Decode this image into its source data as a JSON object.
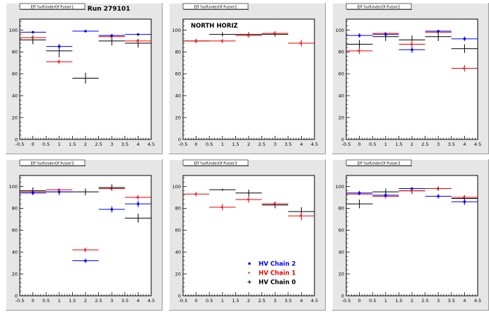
{
  "figure": {
    "run_label": "Run 279101",
    "colors": {
      "pad_background": "#e6e6e6",
      "frame_background": "#ffffff",
      "chain2": "#0000ff",
      "chain1": "#ee0000",
      "chain0": "#000000"
    }
  },
  "chart_data": [
    {
      "type": "scatter",
      "title": "Eff %ofUnderOf Pulser1",
      "xlim": [
        -0.5,
        4.5
      ],
      "ylim": [
        0,
        110
      ],
      "x_ticks": [
        "-0.5",
        "0",
        "0.5",
        "1",
        "1.5",
        "2",
        "2.5",
        "3",
        "3.5",
        "4",
        "4.5"
      ],
      "y_ticks": [
        "0",
        "20",
        "40",
        "60",
        "80",
        "100"
      ],
      "series": [
        {
          "key": "chain2",
          "x": [
            0,
            1,
            2,
            3,
            4
          ],
          "y": [
            98,
            85,
            99,
            95,
            96
          ],
          "err": [
            0,
            2,
            0,
            1,
            0
          ]
        },
        {
          "key": "chain1",
          "x": [
            0,
            1,
            2,
            3,
            4
          ],
          "y": [
            93,
            71,
            null,
            94,
            90
          ],
          "err": [
            1,
            2,
            0,
            1,
            2
          ]
        },
        {
          "key": "chain0",
          "x": [
            0,
            1,
            2,
            3,
            4
          ],
          "y": [
            91,
            81,
            56,
            90,
            88
          ],
          "err": [
            4,
            6,
            5,
            4,
            4
          ]
        }
      ]
    },
    {
      "type": "scatter",
      "title": "Eff %ofUnderOf Pulser2",
      "annotation": "NORTH HORIZ",
      "xlim": [
        -0.5,
        4.5
      ],
      "ylim": [
        0,
        110
      ],
      "x_ticks": [
        "-0.5",
        "0",
        "0.5",
        "1",
        "1.5",
        "2",
        "2.5",
        "3",
        "3.5",
        "4",
        "4.5"
      ],
      "y_ticks": [
        "0",
        "20",
        "40",
        "60",
        "80",
        "100"
      ],
      "series": [
        {
          "key": "chain2",
          "x": [],
          "y": [],
          "err": []
        },
        {
          "key": "chain1",
          "x": [
            0,
            1,
            2,
            3,
            4
          ],
          "y": [
            90,
            90,
            95,
            97,
            88
          ],
          "err": [
            2,
            2,
            2,
            2,
            3
          ]
        },
        {
          "key": "chain0",
          "x": [
            0,
            1,
            2,
            3
          ],
          "y": [
            90,
            96,
            96,
            96
          ],
          "err": [
            2,
            2,
            2,
            2
          ]
        }
      ]
    },
    {
      "type": "scatter",
      "title": "Eff %ofUnderOf Pulser2",
      "xlim": [
        -0.5,
        4.5
      ],
      "ylim": [
        0,
        110
      ],
      "x_ticks": [
        "-0.5",
        "0",
        "0.5",
        "1",
        "1.5",
        "2",
        "2.5",
        "3",
        "3.5",
        "4",
        "4.5"
      ],
      "y_ticks": [
        "0",
        "20",
        "40",
        "60",
        "80",
        "100"
      ],
      "series": [
        {
          "key": "chain2",
          "x": [
            0,
            1,
            2,
            3,
            4
          ],
          "y": [
            95,
            96,
            82,
            99,
            92
          ],
          "err": [
            2,
            1,
            3,
            1,
            2
          ]
        },
        {
          "key": "chain1",
          "x": [
            0,
            1,
            2,
            3,
            4
          ],
          "y": [
            81,
            97,
            87,
            98,
            65
          ],
          "err": [
            3,
            1,
            3,
            1,
            3
          ]
        },
        {
          "key": "chain0",
          "x": [
            0,
            1,
            2,
            3,
            4
          ],
          "y": [
            87,
            94,
            91,
            94,
            83
          ],
          "err": [
            4,
            4,
            4,
            4,
            4
          ]
        }
      ]
    },
    {
      "type": "scatter",
      "title": "Eff %ofUnderOf Pulser3",
      "xlim": [
        -0.5,
        4.5
      ],
      "ylim": [
        0,
        110
      ],
      "x_ticks": [
        "-0.5",
        "0",
        "0.5",
        "1",
        "1.5",
        "2",
        "2.5",
        "3",
        "3.5",
        "4",
        "4.5"
      ],
      "y_ticks": [
        "0",
        "20",
        "40",
        "60",
        "80",
        "100"
      ],
      "series": [
        {
          "key": "chain2",
          "x": [
            0,
            1,
            2,
            3,
            4
          ],
          "y": [
            94,
            95,
            32,
            79,
            84
          ],
          "err": [
            2,
            1,
            2,
            3,
            3
          ]
        },
        {
          "key": "chain1",
          "x": [
            0,
            1,
            2,
            3,
            4
          ],
          "y": [
            95,
            97,
            42,
            98,
            90
          ],
          "err": [
            1,
            1,
            2,
            1,
            2
          ]
        },
        {
          "key": "chain0",
          "x": [
            0,
            1,
            2,
            3,
            4
          ],
          "y": [
            96,
            95,
            95,
            99,
            71
          ],
          "err": [
            3,
            3,
            3,
            3,
            4
          ]
        }
      ]
    },
    {
      "type": "scatter",
      "title": "Eff %ofUnderOf Pulser3",
      "xlim": [
        -0.5,
        4.5
      ],
      "ylim": [
        0,
        110
      ],
      "x_ticks": [
        "-0.5",
        "0",
        "0.5",
        "1",
        "1.5",
        "2",
        "2.5",
        "3",
        "3.5",
        "4",
        "4.5"
      ],
      "y_ticks": [
        "0",
        "20",
        "40",
        "60",
        "80",
        "100"
      ],
      "legend": {
        "placement": "bottom-right",
        "entries": [
          {
            "key": "chain2",
            "label": "HV Chain 2"
          },
          {
            "key": "chain1",
            "label": "HV Chain 1"
          },
          {
            "key": "chain0",
            "label": "HV Chain 0"
          }
        ]
      },
      "series": [
        {
          "key": "chain2",
          "x": [],
          "y": [],
          "err": []
        },
        {
          "key": "chain1",
          "x": [
            0,
            1,
            2,
            3,
            4
          ],
          "y": [
            93,
            81,
            88,
            84,
            73
          ],
          "err": [
            2,
            3,
            3,
            2,
            4
          ]
        },
        {
          "key": "chain0",
          "x": [
            1,
            2,
            3,
            4
          ],
          "y": [
            97,
            94,
            83,
            77
          ],
          "err": [
            1,
            3,
            3,
            4
          ]
        }
      ]
    },
    {
      "type": "scatter",
      "title": "Eff %ofUnderOf Pulser3",
      "xlim": [
        -0.5,
        4.5
      ],
      "ylim": [
        0,
        110
      ],
      "x_ticks": [
        "-0.5",
        "0",
        "0.5",
        "1",
        "1.5",
        "2",
        "2.5",
        "3",
        "3.5",
        "4",
        "4.5"
      ],
      "y_ticks": [
        "0",
        "20",
        "40",
        "60",
        "80",
        "100"
      ],
      "series": [
        {
          "key": "chain2",
          "x": [
            0,
            1,
            2,
            3,
            4
          ],
          "y": [
            94,
            92,
            98,
            91,
            86
          ],
          "err": [
            2,
            2,
            1,
            2,
            3
          ]
        },
        {
          "key": "chain1",
          "x": [
            0,
            1,
            2,
            3,
            4
          ],
          "y": [
            93,
            91,
            96,
            98,
            90
          ],
          "err": [
            1,
            2,
            1,
            1,
            2
          ]
        },
        {
          "key": "chain0",
          "x": [
            0,
            1,
            2,
            3,
            4
          ],
          "y": [
            84,
            95,
            96,
            98,
            89
          ],
          "err": [
            4,
            3,
            3,
            2,
            3
          ]
        }
      ]
    }
  ]
}
